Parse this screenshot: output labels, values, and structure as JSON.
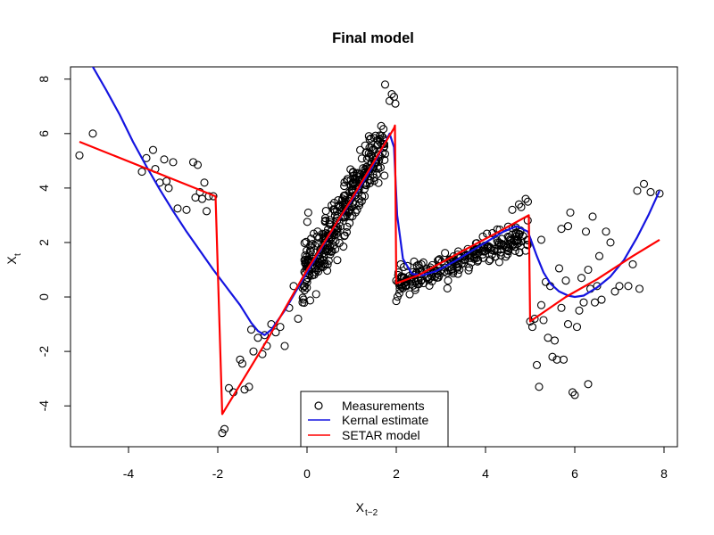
{
  "chart_data": {
    "type": "scatter",
    "title": "Final model",
    "xlabel": {
      "base": "X",
      "sub": "t−2"
    },
    "ylabel": {
      "base": "X",
      "sub": "t"
    },
    "xlim": [
      -5.3,
      8.3
    ],
    "ylim": [
      -5.5,
      8.45
    ],
    "xticks": [
      -4,
      -2,
      0,
      2,
      4,
      6,
      8
    ],
    "xtick_labels": [
      "-4",
      "-2",
      "0",
      "2",
      "4",
      "6",
      "8"
    ],
    "yticks": [
      -4,
      -2,
      0,
      2,
      4,
      6,
      8
    ],
    "ytick_labels": [
      "-4",
      "-2",
      "0",
      "2",
      "4",
      "6",
      "8"
    ],
    "grid": false,
    "legend_position": "bottom-center",
    "series": [
      {
        "name": "Measurements",
        "kind": "points",
        "color": "#000000",
        "points": [
          [
            -5.1,
            5.2
          ],
          [
            -4.8,
            6.0
          ],
          [
            -3.7,
            4.6
          ],
          [
            -3.6,
            5.1
          ],
          [
            -3.45,
            5.4
          ],
          [
            -3.4,
            4.7
          ],
          [
            -3.3,
            4.2
          ],
          [
            -3.2,
            5.05
          ],
          [
            -3.15,
            4.25
          ],
          [
            -3.1,
            4.0
          ],
          [
            -3.0,
            4.95
          ],
          [
            -2.9,
            3.25
          ],
          [
            -2.7,
            3.2
          ],
          [
            -2.55,
            4.95
          ],
          [
            -2.5,
            3.65
          ],
          [
            -2.45,
            4.85
          ],
          [
            -2.4,
            3.85
          ],
          [
            -2.35,
            3.6
          ],
          [
            -2.3,
            4.2
          ],
          [
            -2.25,
            3.15
          ],
          [
            -2.2,
            3.7
          ],
          [
            -2.1,
            3.7
          ],
          [
            -1.9,
            -5.0
          ],
          [
            -1.85,
            -4.85
          ],
          [
            -1.75,
            -3.35
          ],
          [
            -1.65,
            -3.5
          ],
          [
            -1.5,
            -2.3
          ],
          [
            -1.45,
            -2.45
          ],
          [
            -1.4,
            -3.4
          ],
          [
            -1.3,
            -3.3
          ],
          [
            -1.25,
            -1.2
          ],
          [
            -1.2,
            -2.0
          ],
          [
            -1.1,
            -1.5
          ],
          [
            -1.0,
            -2.1
          ],
          [
            -0.95,
            -1.4
          ],
          [
            -0.9,
            -1.8
          ],
          [
            -0.8,
            -1.0
          ],
          [
            -0.7,
            -1.3
          ],
          [
            -0.6,
            -1.1
          ],
          [
            -0.5,
            -1.8
          ],
          [
            -0.4,
            -0.4
          ],
          [
            -0.3,
            0.4
          ],
          [
            -0.2,
            -0.8
          ],
          [
            -0.1,
            -0.2
          ],
          [
            1.75,
            7.8
          ],
          [
            1.85,
            7.2
          ],
          [
            1.9,
            7.45
          ],
          [
            1.95,
            7.35
          ],
          [
            1.98,
            7.1
          ],
          [
            2.0,
            -0.15
          ],
          [
            2.0,
            0.6
          ],
          [
            2.05,
            0.9
          ],
          [
            2.1,
            1.2
          ],
          [
            2.2,
            0.4
          ],
          [
            2.3,
            0.1
          ],
          [
            2.4,
            1.3
          ],
          [
            2.5,
            0.6
          ],
          [
            4.6,
            3.2
          ],
          [
            4.75,
            3.4
          ],
          [
            4.8,
            3.3
          ],
          [
            4.9,
            3.6
          ],
          [
            4.95,
            3.5
          ],
          [
            5.0,
            -0.9
          ],
          [
            5.05,
            -1.1
          ],
          [
            5.1,
            -0.8
          ],
          [
            5.15,
            -2.5
          ],
          [
            5.2,
            -3.3
          ],
          [
            5.25,
            -0.3
          ],
          [
            5.3,
            -0.85
          ],
          [
            5.35,
            0.55
          ],
          [
            5.4,
            -1.5
          ],
          [
            5.45,
            0.4
          ],
          [
            5.5,
            -2.2
          ],
          [
            5.55,
            -1.6
          ],
          [
            5.6,
            -2.3
          ],
          [
            5.65,
            1.05
          ],
          [
            5.7,
            -0.4
          ],
          [
            5.75,
            -2.3
          ],
          [
            5.8,
            0.6
          ],
          [
            5.85,
            -1.0
          ],
          [
            5.9,
            3.1
          ],
          [
            5.95,
            -3.5
          ],
          [
            6.0,
            -3.6
          ],
          [
            6.05,
            -1.1
          ],
          [
            6.1,
            -0.5
          ],
          [
            6.15,
            0.7
          ],
          [
            6.2,
            -0.2
          ],
          [
            6.25,
            2.4
          ],
          [
            6.3,
            -3.2
          ],
          [
            6.35,
            0.3
          ],
          [
            6.4,
            2.95
          ],
          [
            6.45,
            -0.2
          ],
          [
            6.5,
            0.4
          ],
          [
            6.55,
            1.5
          ],
          [
            6.6,
            -0.1
          ],
          [
            6.7,
            2.4
          ],
          [
            6.8,
            2.0
          ],
          [
            6.9,
            0.2
          ],
          [
            7.0,
            0.4
          ],
          [
            7.2,
            0.4
          ],
          [
            7.3,
            1.2
          ],
          [
            7.4,
            3.9
          ],
          [
            7.45,
            0.3
          ],
          [
            7.55,
            4.15
          ],
          [
            7.7,
            3.85
          ],
          [
            7.9,
            3.8
          ],
          [
            5.85,
            2.6
          ],
          [
            5.7,
            2.5
          ],
          [
            6.3,
            1.0
          ],
          [
            5.25,
            2.1
          ]
        ],
        "generated_clusters": [
          {
            "x_range": [
              -0.1,
              1.75
            ],
            "trend": [
              4.0,
              0.1
            ],
            "spread": 0.95,
            "count": 330,
            "seed": 11
          },
          {
            "x_range": [
              2.0,
              4.95
            ],
            "trend": [
              -3.4,
              0.1
            ],
            "spread": 0.4,
            "count": 240,
            "seed": 23
          }
        ]
      },
      {
        "name": "Kernal estimate",
        "kind": "line",
        "color": "#1414e0",
        "points": [
          [
            -5.1,
            8.9
          ],
          [
            -4.8,
            8.45
          ],
          [
            -4.5,
            7.6
          ],
          [
            -4.2,
            6.7
          ],
          [
            -3.9,
            5.7
          ],
          [
            -3.6,
            4.8
          ],
          [
            -3.3,
            3.95
          ],
          [
            -3.0,
            3.15
          ],
          [
            -2.7,
            2.4
          ],
          [
            -2.4,
            1.7
          ],
          [
            -2.1,
            1.0
          ],
          [
            -1.8,
            0.35
          ],
          [
            -1.5,
            -0.3
          ],
          [
            -1.25,
            -0.95
          ],
          [
            -1.1,
            -1.25
          ],
          [
            -0.95,
            -1.4
          ],
          [
            -0.8,
            -1.2
          ],
          [
            -0.5,
            -0.5
          ],
          [
            -0.2,
            0.35
          ],
          [
            0.2,
            1.45
          ],
          [
            0.6,
            2.55
          ],
          [
            1.0,
            3.55
          ],
          [
            1.4,
            4.6
          ],
          [
            1.7,
            5.5
          ],
          [
            1.85,
            6.0
          ],
          [
            1.95,
            5.5
          ],
          [
            2.02,
            3.0
          ],
          [
            2.15,
            1.4
          ],
          [
            2.35,
            0.85
          ],
          [
            2.6,
            0.8
          ],
          [
            2.9,
            0.95
          ],
          [
            3.3,
            1.3
          ],
          [
            3.7,
            1.7
          ],
          [
            4.1,
            2.1
          ],
          [
            4.4,
            2.4
          ],
          [
            4.7,
            2.6
          ],
          [
            4.95,
            2.4
          ],
          [
            5.15,
            1.5
          ],
          [
            5.3,
            0.9
          ],
          [
            5.45,
            0.5
          ],
          [
            5.65,
            0.2
          ],
          [
            5.85,
            0.05
          ],
          [
            6.0,
            0.0
          ],
          [
            6.2,
            0.05
          ],
          [
            6.5,
            0.35
          ],
          [
            6.8,
            0.75
          ],
          [
            7.1,
            1.35
          ],
          [
            7.4,
            2.2
          ],
          [
            7.65,
            3.0
          ],
          [
            7.9,
            3.9
          ]
        ]
      },
      {
        "name": "SETAR model",
        "kind": "line",
        "color": "#ff0000",
        "points": [
          [
            -5.1,
            5.7
          ],
          [
            -2.05,
            3.7
          ],
          [
            -1.9,
            -4.3
          ],
          [
            -0.9,
            -1.6
          ],
          [
            0.0,
            1.0
          ],
          [
            1.0,
            3.6
          ],
          [
            1.95,
            6.2
          ],
          [
            1.97,
            6.3
          ],
          [
            2.0,
            0.5
          ],
          [
            2.5,
            0.8
          ],
          [
            3.5,
            1.7
          ],
          [
            4.3,
            2.4
          ],
          [
            4.97,
            3.0
          ],
          [
            5.0,
            -0.9
          ],
          [
            5.8,
            0.0
          ],
          [
            6.5,
            0.65
          ],
          [
            7.3,
            1.5
          ],
          [
            7.9,
            2.1
          ]
        ]
      }
    ]
  }
}
